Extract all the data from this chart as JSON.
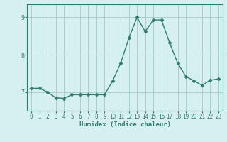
{
  "xlabel": "Humidex (Indice chaleur)",
  "x_values": [
    0,
    1,
    2,
    3,
    4,
    5,
    6,
    7,
    8,
    9,
    10,
    11,
    12,
    13,
    14,
    15,
    16,
    17,
    18,
    19,
    20,
    21,
    22,
    23
  ],
  "y_values": [
    7.1,
    7.1,
    7.0,
    6.85,
    6.83,
    6.93,
    6.93,
    6.93,
    6.93,
    6.93,
    7.3,
    7.78,
    8.45,
    9.0,
    8.62,
    8.93,
    8.93,
    8.32,
    7.77,
    7.42,
    7.3,
    7.18,
    7.32,
    7.35
  ],
  "line_color": "#2e7d6e",
  "marker": "D",
  "marker_size": 2.5,
  "bg_color": "#d6efef",
  "grid_color": "#aacfcf",
  "axis_color": "#2e7d6e",
  "tick_label_color": "#2e7d6e",
  "xlabel_color": "#2e7d6e",
  "ylim": [
    6.5,
    9.35
  ],
  "yticks": [
    7,
    8,
    9
  ],
  "xlim": [
    -0.5,
    23.5
  ],
  "tick_fontsize": 5.5,
  "label_fontsize": 6.5
}
